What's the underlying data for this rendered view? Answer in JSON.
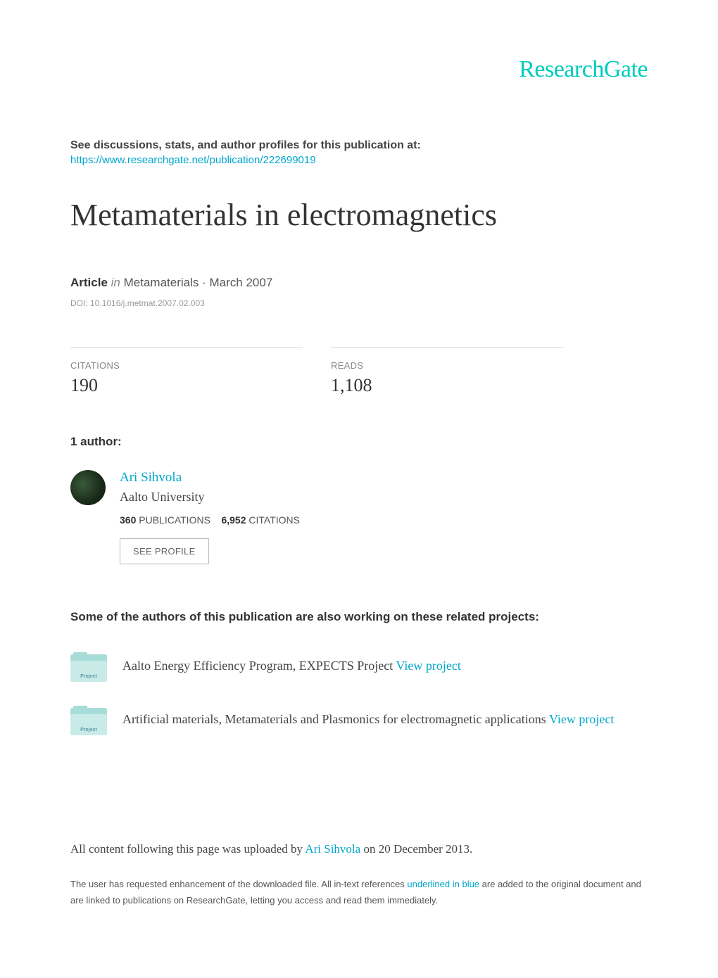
{
  "logo": "ResearchGate",
  "discussions_text": "See discussions, stats, and author profiles for this publication at:",
  "publication_url": "https://www.researchgate.net/publication/222699019",
  "title": "Metamaterials in electromagnetics",
  "meta": {
    "type_label": "Article",
    "in_text": "in",
    "journal": "Metamaterials",
    "date": "March 2007",
    "doi_prefix": "DOI: ",
    "doi": "10.1016/j.metmat.2007.02.003"
  },
  "stats": {
    "citations_label": "CITATIONS",
    "citations_value": "190",
    "reads_label": "READS",
    "reads_value": "1,108"
  },
  "authors_heading": "1 author:",
  "author": {
    "name": "Ari Sihvola",
    "affiliation": "Aalto University",
    "pub_count": "360",
    "pub_label": "PUBLICATIONS",
    "cite_count": "6,952",
    "cite_label": "CITATIONS",
    "see_profile_label": "SEE PROFILE"
  },
  "projects_heading": "Some of the authors of this publication are also working on these related projects:",
  "projects": [
    {
      "icon_label": "Project",
      "text": "Aalto Energy Efficiency Program, EXPECTS Project ",
      "link_text": "View project"
    },
    {
      "icon_label": "Project",
      "text": "Artificial materials, Metamaterials and Plasmonics for electromagnetic applications ",
      "link_text": "View project"
    }
  ],
  "footer": {
    "upload_prefix": "All content following this page was uploaded by ",
    "upload_author": "Ari Sihvola",
    "upload_suffix": " on 20 December 2013.",
    "note_prefix": "The user has requested enhancement of the downloaded file. All in-text references ",
    "note_link": "underlined in blue",
    "note_suffix": " are added to the original document and are linked to publications on ResearchGate, letting you access and read them immediately."
  },
  "colors": {
    "brand": "#00ccbb",
    "link": "#00a6cc",
    "text_primary": "#333333",
    "text_muted": "#888888",
    "divider": "#dddddd",
    "folder_back": "#a8dcd8",
    "folder_front": "#c8ebe8"
  }
}
